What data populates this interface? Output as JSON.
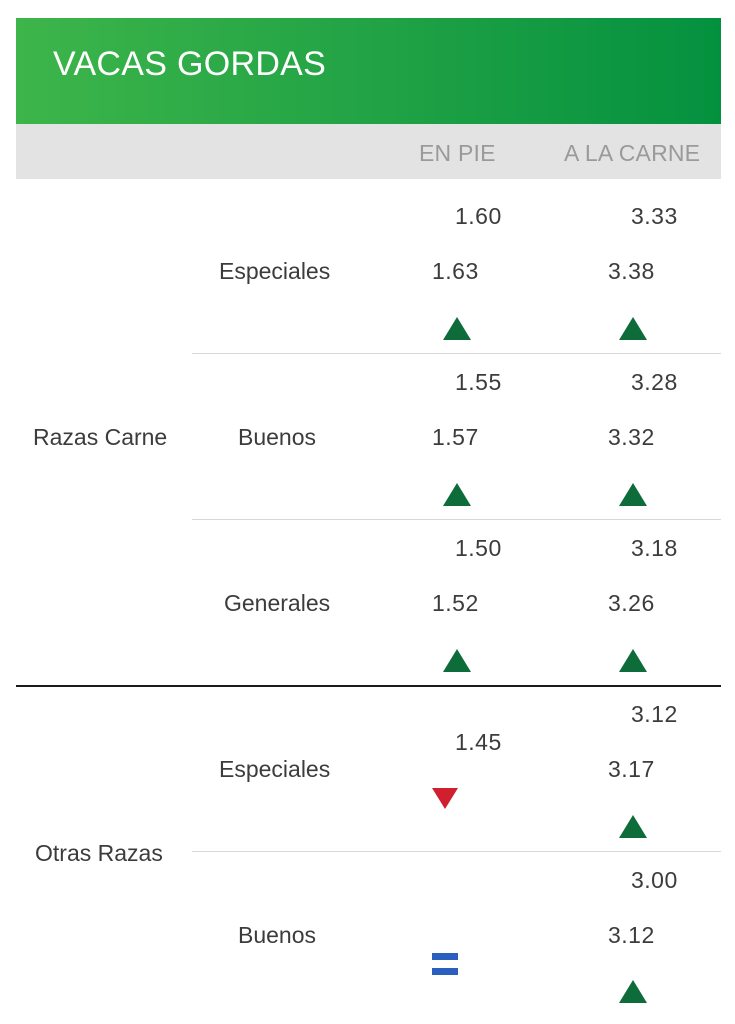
{
  "header": {
    "title": "VACAS GORDAS"
  },
  "columns": {
    "en_pie": "EN PIE",
    "a_la_carne": "A LA CARNE"
  },
  "groups": [
    {
      "name": "Razas Carne",
      "rows": [
        {
          "label": "Especiales",
          "en_pie": {
            "min": "1.60",
            "max": "1.63",
            "trend": "up"
          },
          "a_la_carne": {
            "min": "3.33",
            "max": "3.38",
            "trend": "up"
          }
        },
        {
          "label": "Buenos",
          "en_pie": {
            "min": "1.55",
            "max": "1.57",
            "trend": "up"
          },
          "a_la_carne": {
            "min": "3.28",
            "max": "3.32",
            "trend": "up"
          }
        },
        {
          "label": "Generales",
          "en_pie": {
            "min": "1.50",
            "max": "1.52",
            "trend": "up"
          },
          "a_la_carne": {
            "min": "3.18",
            "max": "3.26",
            "trend": "up"
          }
        }
      ]
    },
    {
      "name": "Otras Razas",
      "rows": [
        {
          "label": "Especiales",
          "en_pie": {
            "value": "1.45",
            "trend": "down"
          },
          "a_la_carne": {
            "min": "3.12",
            "max": "3.17",
            "trend": "up"
          }
        },
        {
          "label": "Buenos",
          "en_pie": {
            "trend": "equal"
          },
          "a_la_carne": {
            "min": "3.00",
            "max": "3.12",
            "trend": "up"
          }
        }
      ]
    }
  ],
  "colors": {
    "header_start": "#3db54a",
    "header_end": "#04913f",
    "trend_up": "#0e6b3a",
    "trend_down": "#d0202f",
    "trend_equal": "#2b5fbf"
  }
}
